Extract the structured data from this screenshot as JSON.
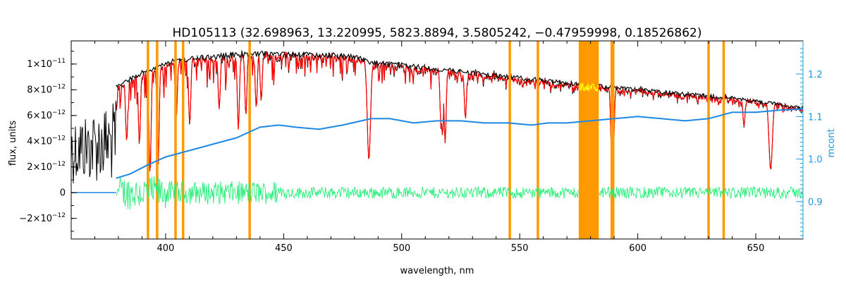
{
  "chart_data": {
    "type": "line",
    "title": "HD105113   (32.698963, 13.220995, 5823.8894, 3.5805242, −0.47959998, 0.18526862)",
    "xlabel": "wavelength, nm",
    "ylabel": "flux, units",
    "y2label": "mcont",
    "xlim": [
      360,
      670
    ],
    "ylim": [
      -3.6e-12,
      1.18e-11
    ],
    "y2lim": [
      0.812,
      1.278
    ],
    "x_ticks": [
      400,
      450,
      500,
      550,
      600,
      650
    ],
    "x_tick_labels": [
      "400",
      "450",
      "500",
      "550",
      "600",
      "650"
    ],
    "y_ticks": [
      -2e-12,
      0,
      2e-12,
      4e-12,
      6e-12,
      8e-12,
      1e-11
    ],
    "y_tick_labels": [
      {
        "mant": "−2×10",
        "exp": "−12"
      },
      {
        "mant": "0",
        "exp": ""
      },
      {
        "mant": "2×10",
        "exp": "−12"
      },
      {
        "mant": "4×10",
        "exp": "−12"
      },
      {
        "mant": "6×10",
        "exp": "−12"
      },
      {
        "mant": "8×10",
        "exp": "−12"
      },
      {
        "mant": "1×10",
        "exp": "−11"
      }
    ],
    "y2_ticks": [
      0.9,
      1.0,
      1.1,
      1.2
    ],
    "y2_tick_labels": [
      "0.9",
      "1.0",
      "1.1",
      "1.2"
    ],
    "masked_lines_nm": [
      392.5,
      396.4,
      404.2,
      407.4,
      435.6,
      545.8,
      557.7,
      589.0,
      589.6,
      630.0,
      636.4
    ],
    "masked_band_nm": [
      575.0,
      583.5
    ],
    "continuum": {
      "name": "mcont",
      "x": [
        379,
        385,
        392,
        400,
        410,
        420,
        430,
        440,
        448,
        455,
        465,
        475,
        487,
        495,
        505,
        515,
        525,
        535,
        545,
        555,
        562,
        570,
        580,
        590,
        600,
        610,
        620,
        630,
        640,
        650,
        660,
        670
      ],
      "y": [
        0.955,
        0.965,
        0.985,
        1.005,
        1.02,
        1.035,
        1.05,
        1.075,
        1.08,
        1.075,
        1.07,
        1.08,
        1.095,
        1.095,
        1.085,
        1.09,
        1.09,
        1.085,
        1.085,
        1.08,
        1.085,
        1.085,
        1.09,
        1.095,
        1.1,
        1.095,
        1.09,
        1.095,
        1.11,
        1.11,
        1.115,
        1.118
      ]
    },
    "model_envelope": {
      "x": [
        360,
        380,
        390,
        400,
        410,
        420,
        430,
        440,
        450,
        460,
        470,
        480,
        487,
        495,
        505,
        520,
        540,
        560,
        580,
        600,
        620,
        640,
        660,
        670
      ],
      "y": [
        7e-12,
        8.5e-12,
        9.5e-12,
        1.03e-11,
        1.06e-11,
        1.08e-11,
        1.09e-11,
        1.1e-11,
        1.1e-11,
        1.095e-11,
        1.09e-11,
        1.08e-11,
        1.03e-11,
        1.02e-11,
        1e-11,
        9.7e-12,
        9.3e-12,
        8.9e-12,
        8.5e-12,
        8.2e-12,
        7.8e-12,
        7.5e-12,
        7e-12,
        6.7e-12
      ]
    },
    "series": [
      {
        "name": "",
        "role": "observed",
        "color": "#000000"
      },
      {
        "name": "",
        "role": "model",
        "color": "#ff0000"
      },
      {
        "name": "",
        "role": "residuals",
        "color": "#00e676"
      },
      {
        "name": "",
        "role": "continuum",
        "color": "#1e88e5"
      }
    ],
    "colors": {
      "observed": "#000000",
      "model": "#ff0000",
      "residuals": "#22ee77",
      "continuum": "#1e88e5",
      "mask": "#ff9900",
      "masked_model": "#ffff00",
      "right_axis": "#1e9be0"
    }
  }
}
